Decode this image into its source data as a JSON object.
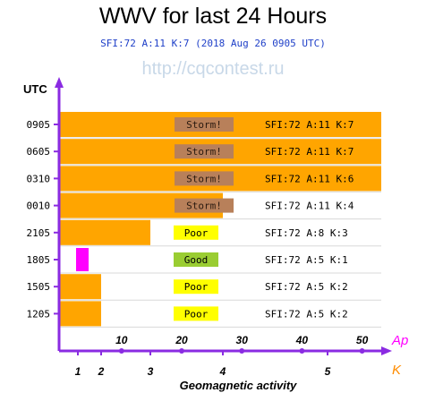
{
  "title": "WWV for last 24 Hours",
  "subtitle": "SFI:72 A:11 K:7 (2018 Aug 26 0905 UTC)",
  "watermark": "http://cqcontest.ru",
  "chart_data": {
    "type": "bar",
    "orientation": "horizontal",
    "y_axis_label": "UTC",
    "x_axis_label": "Geomagnetic activity",
    "ap_label": "Ap",
    "k_label": "K",
    "ap_ticks": [
      10,
      20,
      30,
      40,
      50
    ],
    "k_ticks": [
      1,
      2,
      3,
      4,
      5
    ],
    "rows": [
      {
        "utc": "0905",
        "k": 7,
        "status": "Storm!",
        "info": "SFI:72 A:11 K:7"
      },
      {
        "utc": "0605",
        "k": 7,
        "status": "Storm!",
        "info": "SFI:72 A:11 K:7"
      },
      {
        "utc": "0310",
        "k": 6,
        "status": "Storm!",
        "info": "SFI:72 A:11 K:6"
      },
      {
        "utc": "0010",
        "k": 4,
        "status": "Storm!",
        "info": "SFI:72 A:11 K:4"
      },
      {
        "utc": "2105",
        "k": 3,
        "status": "Poor",
        "info": "SFI:72 A:8 K:3"
      },
      {
        "utc": "1805",
        "k": 1,
        "status": "Good",
        "info": "SFI:72 A:5 K:1"
      },
      {
        "utc": "1505",
        "k": 2,
        "status": "Poor",
        "info": "SFI:72 A:5 K:2"
      },
      {
        "utc": "1205",
        "k": 2,
        "status": "Poor",
        "info": "SFI:72 A:5 K:2"
      }
    ],
    "colors": {
      "bar": "#ffa500",
      "bar_k1": "#ff00ff",
      "axis": "#8a2be2",
      "ap_label": "#ff00ff",
      "k_label": "#ff8c00",
      "storm_badge": "#b8805a",
      "poor_badge": "#ffff00",
      "good_badge": "#9acd32",
      "grid": "#d8d8d8"
    }
  }
}
